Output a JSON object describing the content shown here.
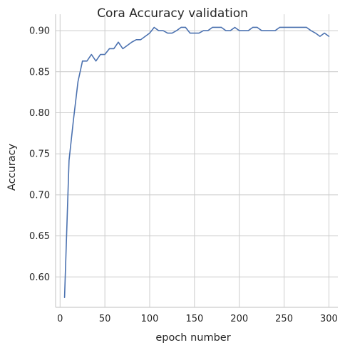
{
  "chart_data": {
    "type": "line",
    "title": "Cora Accuracy validation",
    "xlabel": "epoch number",
    "ylabel": "Accuracy",
    "xlim": [
      -5,
      310
    ],
    "ylim": [
      0.563,
      0.92
    ],
    "xticks": [
      0,
      50,
      100,
      150,
      200,
      250,
      300
    ],
    "yticks": [
      0.6,
      0.65,
      0.7,
      0.75,
      0.8,
      0.85,
      0.9
    ],
    "xtick_labels": [
      "0",
      "50",
      "100",
      "150",
      "200",
      "250",
      "300"
    ],
    "ytick_labels": [
      "0.60",
      "0.65",
      "0.70",
      "0.75",
      "0.80",
      "0.85",
      "0.90"
    ],
    "grid": true,
    "series": [
      {
        "color": "#4c72b0",
        "x": [
          5,
          10,
          15,
          20,
          25,
          30,
          35,
          40,
          45,
          50,
          55,
          60,
          65,
          70,
          75,
          80,
          85,
          90,
          95,
          100,
          105,
          110,
          115,
          120,
          125,
          130,
          135,
          140,
          145,
          150,
          155,
          160,
          165,
          170,
          175,
          180,
          185,
          190,
          195,
          200,
          205,
          210,
          215,
          220,
          225,
          230,
          235,
          240,
          245,
          250,
          255,
          260,
          265,
          270,
          275,
          280,
          285,
          290,
          295,
          300
        ],
        "y": [
          0.575,
          0.742,
          0.792,
          0.838,
          0.863,
          0.863,
          0.871,
          0.863,
          0.871,
          0.871,
          0.878,
          0.878,
          0.886,
          0.878,
          0.882,
          0.886,
          0.889,
          0.889,
          0.893,
          0.897,
          0.904,
          0.9,
          0.9,
          0.897,
          0.897,
          0.9,
          0.904,
          0.904,
          0.897,
          0.897,
          0.897,
          0.9,
          0.9,
          0.904,
          0.904,
          0.904,
          0.9,
          0.9,
          0.904,
          0.9,
          0.9,
          0.9,
          0.904,
          0.904,
          0.9,
          0.9,
          0.9,
          0.9,
          0.904,
          0.904,
          0.904,
          0.904,
          0.904,
          0.904,
          0.904,
          0.9,
          0.897,
          0.893,
          0.897,
          0.893
        ]
      }
    ]
  }
}
